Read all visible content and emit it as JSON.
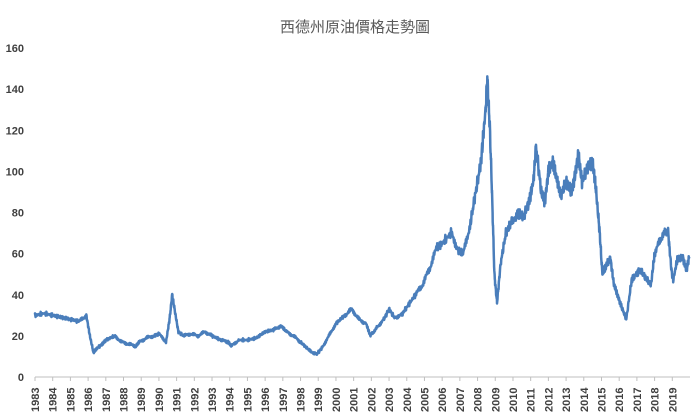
{
  "chart_data": {
    "type": "line",
    "title": "西德州原油價格走勢圖",
    "xlabel": "",
    "ylabel": "",
    "ylim": [
      0,
      160
    ],
    "y_ticks": [
      "0",
      "20",
      "40",
      "60",
      "80",
      "100",
      "120",
      "140",
      "160"
    ],
    "x_ticks": [
      "1983",
      "1984",
      "1985",
      "1986",
      "1987",
      "1988",
      "1989",
      "1990",
      "1991",
      "1992",
      "1993",
      "1994",
      "1995",
      "1996",
      "1997",
      "1998",
      "1999",
      "2000",
      "2001",
      "2002",
      "2003",
      "2004",
      "2005",
      "2006",
      "2007",
      "2008",
      "2009",
      "2010",
      "2011",
      "2012",
      "2013",
      "2014",
      "2015",
      "2016",
      "2017",
      "2018",
      "2019"
    ],
    "xlim": [
      1983.0,
      2020.0
    ],
    "grid": false,
    "legend": "none",
    "line_color": "#4a7ebb",
    "series": [
      {
        "x": [
          1983.0,
          1983.5,
          1984.0,
          1984.5,
          1985.0,
          1985.5,
          1985.9,
          1986.1,
          1986.3,
          1986.5,
          1986.8,
          1987.0,
          1987.5,
          1987.9,
          1988.3,
          1988.7,
          1988.9,
          1989.3,
          1989.7,
          1990.0,
          1990.4,
          1990.6,
          1990.75,
          1990.9,
          1991.1,
          1991.4,
          1991.8,
          1992.2,
          1992.6,
          1993.0,
          1993.5,
          1993.9,
          1994.1,
          1994.5,
          1995.0,
          1995.5,
          1996.0,
          1996.5,
          1996.9,
          1997.2,
          1997.6,
          1998.0,
          1998.5,
          1998.9,
          1999.2,
          1999.6,
          2000.0,
          2000.5,
          2000.9,
          2001.3,
          2001.7,
          2001.95,
          2002.3,
          2002.7,
          2003.0,
          2003.3,
          2003.7,
          2004.0,
          2004.5,
          2004.9,
          2005.3,
          2005.7,
          2006.0,
          2006.5,
          2006.9,
          2007.2,
          2007.6,
          2007.9,
          2008.2,
          2008.45,
          2008.55,
          2008.7,
          2008.85,
          2008.95,
          2009.1,
          2009.3,
          2009.6,
          2009.9,
          2010.3,
          2010.6,
          2010.9,
          2011.15,
          2011.3,
          2011.6,
          2011.8,
          2012.0,
          2012.25,
          2012.5,
          2012.7,
          2013.0,
          2013.3,
          2013.5,
          2013.7,
          2013.9,
          2014.2,
          2014.5,
          2014.7,
          2014.9,
          2015.05,
          2015.3,
          2015.5,
          2015.7,
          2015.9,
          2016.1,
          2016.4,
          2016.7,
          2016.95,
          2017.2,
          2017.5,
          2017.8,
          2018.0,
          2018.4,
          2018.75,
          2018.95,
          2019.05,
          2019.3,
          2019.6,
          2019.8,
          2019.95
        ],
        "values": [
          30,
          31,
          30,
          29,
          28,
          27,
          30,
          20,
          12,
          14,
          16,
          18,
          20,
          17,
          16,
          15,
          17,
          19,
          20,
          21,
          17,
          28,
          40,
          32,
          22,
          20,
          21,
          20,
          22,
          20,
          18,
          17,
          15,
          18,
          18,
          19,
          22,
          23,
          25,
          22,
          20,
          17,
          13,
          11,
          14,
          20,
          26,
          30,
          33,
          28,
          26,
          20,
          24,
          28,
          33,
          29,
          30,
          34,
          40,
          45,
          53,
          63,
          65,
          70,
          62,
          60,
          75,
          90,
          105,
          130,
          145,
          120,
          80,
          50,
          36,
          55,
          70,
          75,
          80,
          78,
          85,
          95,
          112,
          90,
          85,
          100,
          105,
          95,
          88,
          95,
          90,
          98,
          108,
          95,
          102,
          105,
          90,
          70,
          50,
          55,
          58,
          45,
          40,
          35,
          28,
          47,
          50,
          52,
          48,
          45,
          60,
          68,
          72,
          52,
          47,
          58,
          58,
          52,
          58
        ]
      }
    ]
  }
}
